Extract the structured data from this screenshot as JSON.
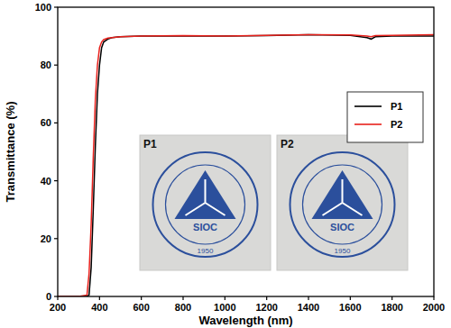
{
  "chart_data": {
    "type": "line",
    "x_label": "Wavelength (nm)",
    "y_label": "Transmittance (%)",
    "x": [
      200,
      300,
      340,
      350,
      360,
      370,
      380,
      390,
      400,
      410,
      420,
      440,
      460,
      500,
      600,
      800,
      1000,
      1200,
      1400,
      1600,
      1680,
      1700,
      1720,
      1800,
      2000
    ],
    "series": [
      {
        "name": "P1",
        "color": "#000000",
        "values": [
          0,
          0,
          0,
          0.5,
          10,
          30,
          52,
          70,
          80,
          86,
          88,
          89,
          89.5,
          89.8,
          90,
          90,
          90,
          90.2,
          90.5,
          90.3,
          89.5,
          89,
          89.8,
          90,
          90
        ]
      },
      {
        "name": "P2",
        "color": "#e8211c",
        "values": [
          0,
          0,
          0.5,
          8,
          25,
          48,
          68,
          80,
          86,
          88,
          88.8,
          89.3,
          89.5,
          89.8,
          90,
          90.2,
          90,
          90.3,
          90.5,
          90.4,
          90,
          89.8,
          90.2,
          90.3,
          90.5
        ]
      }
    ],
    "xlim": [
      200,
      2000
    ],
    "xticks": [
      200,
      400,
      600,
      800,
      1000,
      1200,
      1400,
      1600,
      1800,
      2000
    ],
    "ylim": [
      0,
      100
    ],
    "yticks": [
      0,
      20,
      40,
      60,
      80,
      100
    ],
    "legend": "upper right",
    "annotations": [
      {
        "label": "P1",
        "logo": "SIOC",
        "year": "1950"
      },
      {
        "label": "P2",
        "logo": "SIOC",
        "year": "1950"
      }
    ]
  }
}
